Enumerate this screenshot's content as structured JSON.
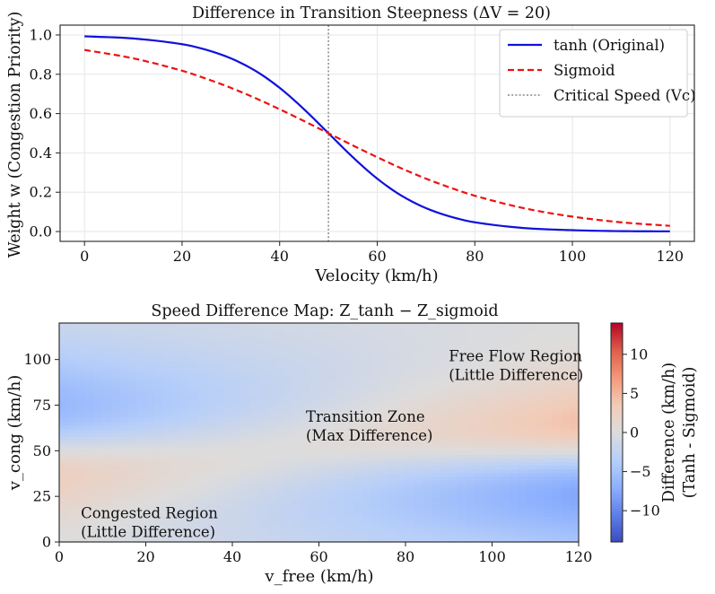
{
  "chart_data": [
    {
      "type": "line",
      "title": "Difference in Transition Steepness (ΔV = 20)",
      "xlabel": "Velocity (km/h)",
      "ylabel": "Weight w (Congestion Priority)",
      "xlim": [
        -5,
        125
      ],
      "ylim": [
        -0.05,
        1.05
      ],
      "xticks": [
        0,
        20,
        40,
        60,
        80,
        100,
        120
      ],
      "yticks": [
        0.0,
        0.2,
        0.4,
        0.6,
        0.8,
        1.0
      ],
      "grid": true,
      "legend_position": "upper-right",
      "critical_speed": 50,
      "series": [
        {
          "name": "tanh (Original)",
          "color": "#1010dd",
          "style": "solid",
          "x": [
            0,
            10,
            20,
            25,
            30,
            35,
            40,
            45,
            50,
            55,
            60,
            65,
            70,
            75,
            80,
            90,
            100,
            110,
            120
          ],
          "values": [
            0.993,
            0.982,
            0.953,
            0.924,
            0.881,
            0.818,
            0.731,
            0.622,
            0.5,
            0.378,
            0.269,
            0.182,
            0.119,
            0.076,
            0.047,
            0.018,
            0.007,
            0.002,
            0.001
          ]
        },
        {
          "name": "Sigmoid",
          "color": "#ee1111",
          "style": "dashed",
          "x": [
            0,
            10,
            20,
            25,
            30,
            35,
            40,
            45,
            50,
            55,
            60,
            65,
            70,
            75,
            80,
            90,
            100,
            110,
            120
          ],
          "values": [
            0.924,
            0.881,
            0.818,
            0.777,
            0.731,
            0.679,
            0.622,
            0.562,
            0.5,
            0.438,
            0.378,
            0.321,
            0.269,
            0.223,
            0.182,
            0.119,
            0.076,
            0.047,
            0.029
          ]
        },
        {
          "name": "Critical Speed (Vc)",
          "color": "#888888",
          "style": "dotted"
        }
      ]
    },
    {
      "type": "heatmap",
      "title": "Speed Difference Map: Z_tanh − Z_sigmoid",
      "xlabel": "v_free (km/h)",
      "ylabel": "v_cong (km/h)",
      "xlim": [
        0,
        120
      ],
      "ylim": [
        0,
        120
      ],
      "xticks": [
        0,
        20,
        40,
        60,
        80,
        100,
        120
      ],
      "yticks": [
        0,
        25,
        50,
        75,
        100
      ],
      "colorbar": {
        "label": "Difference (km/h)",
        "label2": "(Tanh - Sigmoid)",
        "ticks": [
          10,
          5,
          0,
          -5,
          -10
        ],
        "range": [
          -14,
          14
        ],
        "colormap": "coolwarm"
      },
      "annotations": [
        {
          "lines": [
            "Free Flow Region",
            "(Little Difference)"
          ],
          "x": 90,
          "y": 99
        },
        {
          "lines": [
            "Transition Zone",
            "(Max Difference)"
          ],
          "x": 57,
          "y": 66
        },
        {
          "lines": [
            "Congested Region",
            "(Little Difference)"
          ],
          "x": 5,
          "y": 13
        }
      ]
    }
  ]
}
